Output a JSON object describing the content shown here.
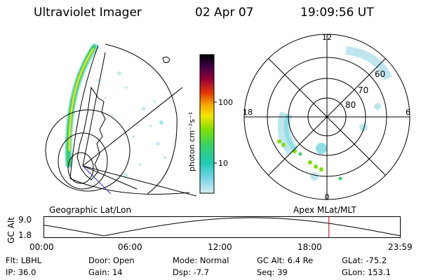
{
  "header": {
    "instrument": "Ultraviolet Imager",
    "date": "02 Apr 07",
    "time": "19:09:56 UT"
  },
  "colorbar": {
    "unit_label": "photon cm⁻²s⁻¹",
    "ticks": [
      "100",
      "10"
    ],
    "colors": [
      "#000000",
      "#3a0042",
      "#6a0058",
      "#9a0038",
      "#c80018",
      "#e53a00",
      "#f7a400",
      "#f6e600",
      "#c8ef00",
      "#7ee000",
      "#33d26a",
      "#1fc9b4",
      "#7cd6e6",
      "#d8eef0"
    ]
  },
  "left_map": {
    "caption": "Geographic Lat/Lon"
  },
  "right_map": {
    "caption": "Apex  MLat/MLT",
    "mlt_labels": {
      "top": "12",
      "left": "18",
      "right": "6",
      "bottom": "0"
    },
    "lat_labels": [
      "60",
      "70",
      "80"
    ]
  },
  "altitude_plot": {
    "ylabel": "GC Alt",
    "y_ticks": [
      "9.0",
      "1.8"
    ],
    "x_ticks": [
      "00:00",
      "06:00",
      "12:00",
      "18:00",
      "23:59"
    ],
    "current_marker_hour": 19.17,
    "marker_color": "#c00000"
  },
  "footer": {
    "row1": [
      {
        "label": "Flt:",
        "value": "LBHL"
      },
      {
        "label": "Door:",
        "value": "Open"
      },
      {
        "label": "Mode:",
        "value": "Normal"
      },
      {
        "label": "GC Alt:",
        "value": "6.4 Re"
      },
      {
        "label": "GLat:",
        "value": "-75.2"
      }
    ],
    "row2": [
      {
        "label": "IP:",
        "value": "36.0"
      },
      {
        "label": "Gain:",
        "value": "14"
      },
      {
        "label": "Dsp:",
        "value": "-7.7"
      },
      {
        "label": "Seq:",
        "value": "39"
      },
      {
        "label": "GLon:",
        "value": "153.1"
      }
    ]
  }
}
